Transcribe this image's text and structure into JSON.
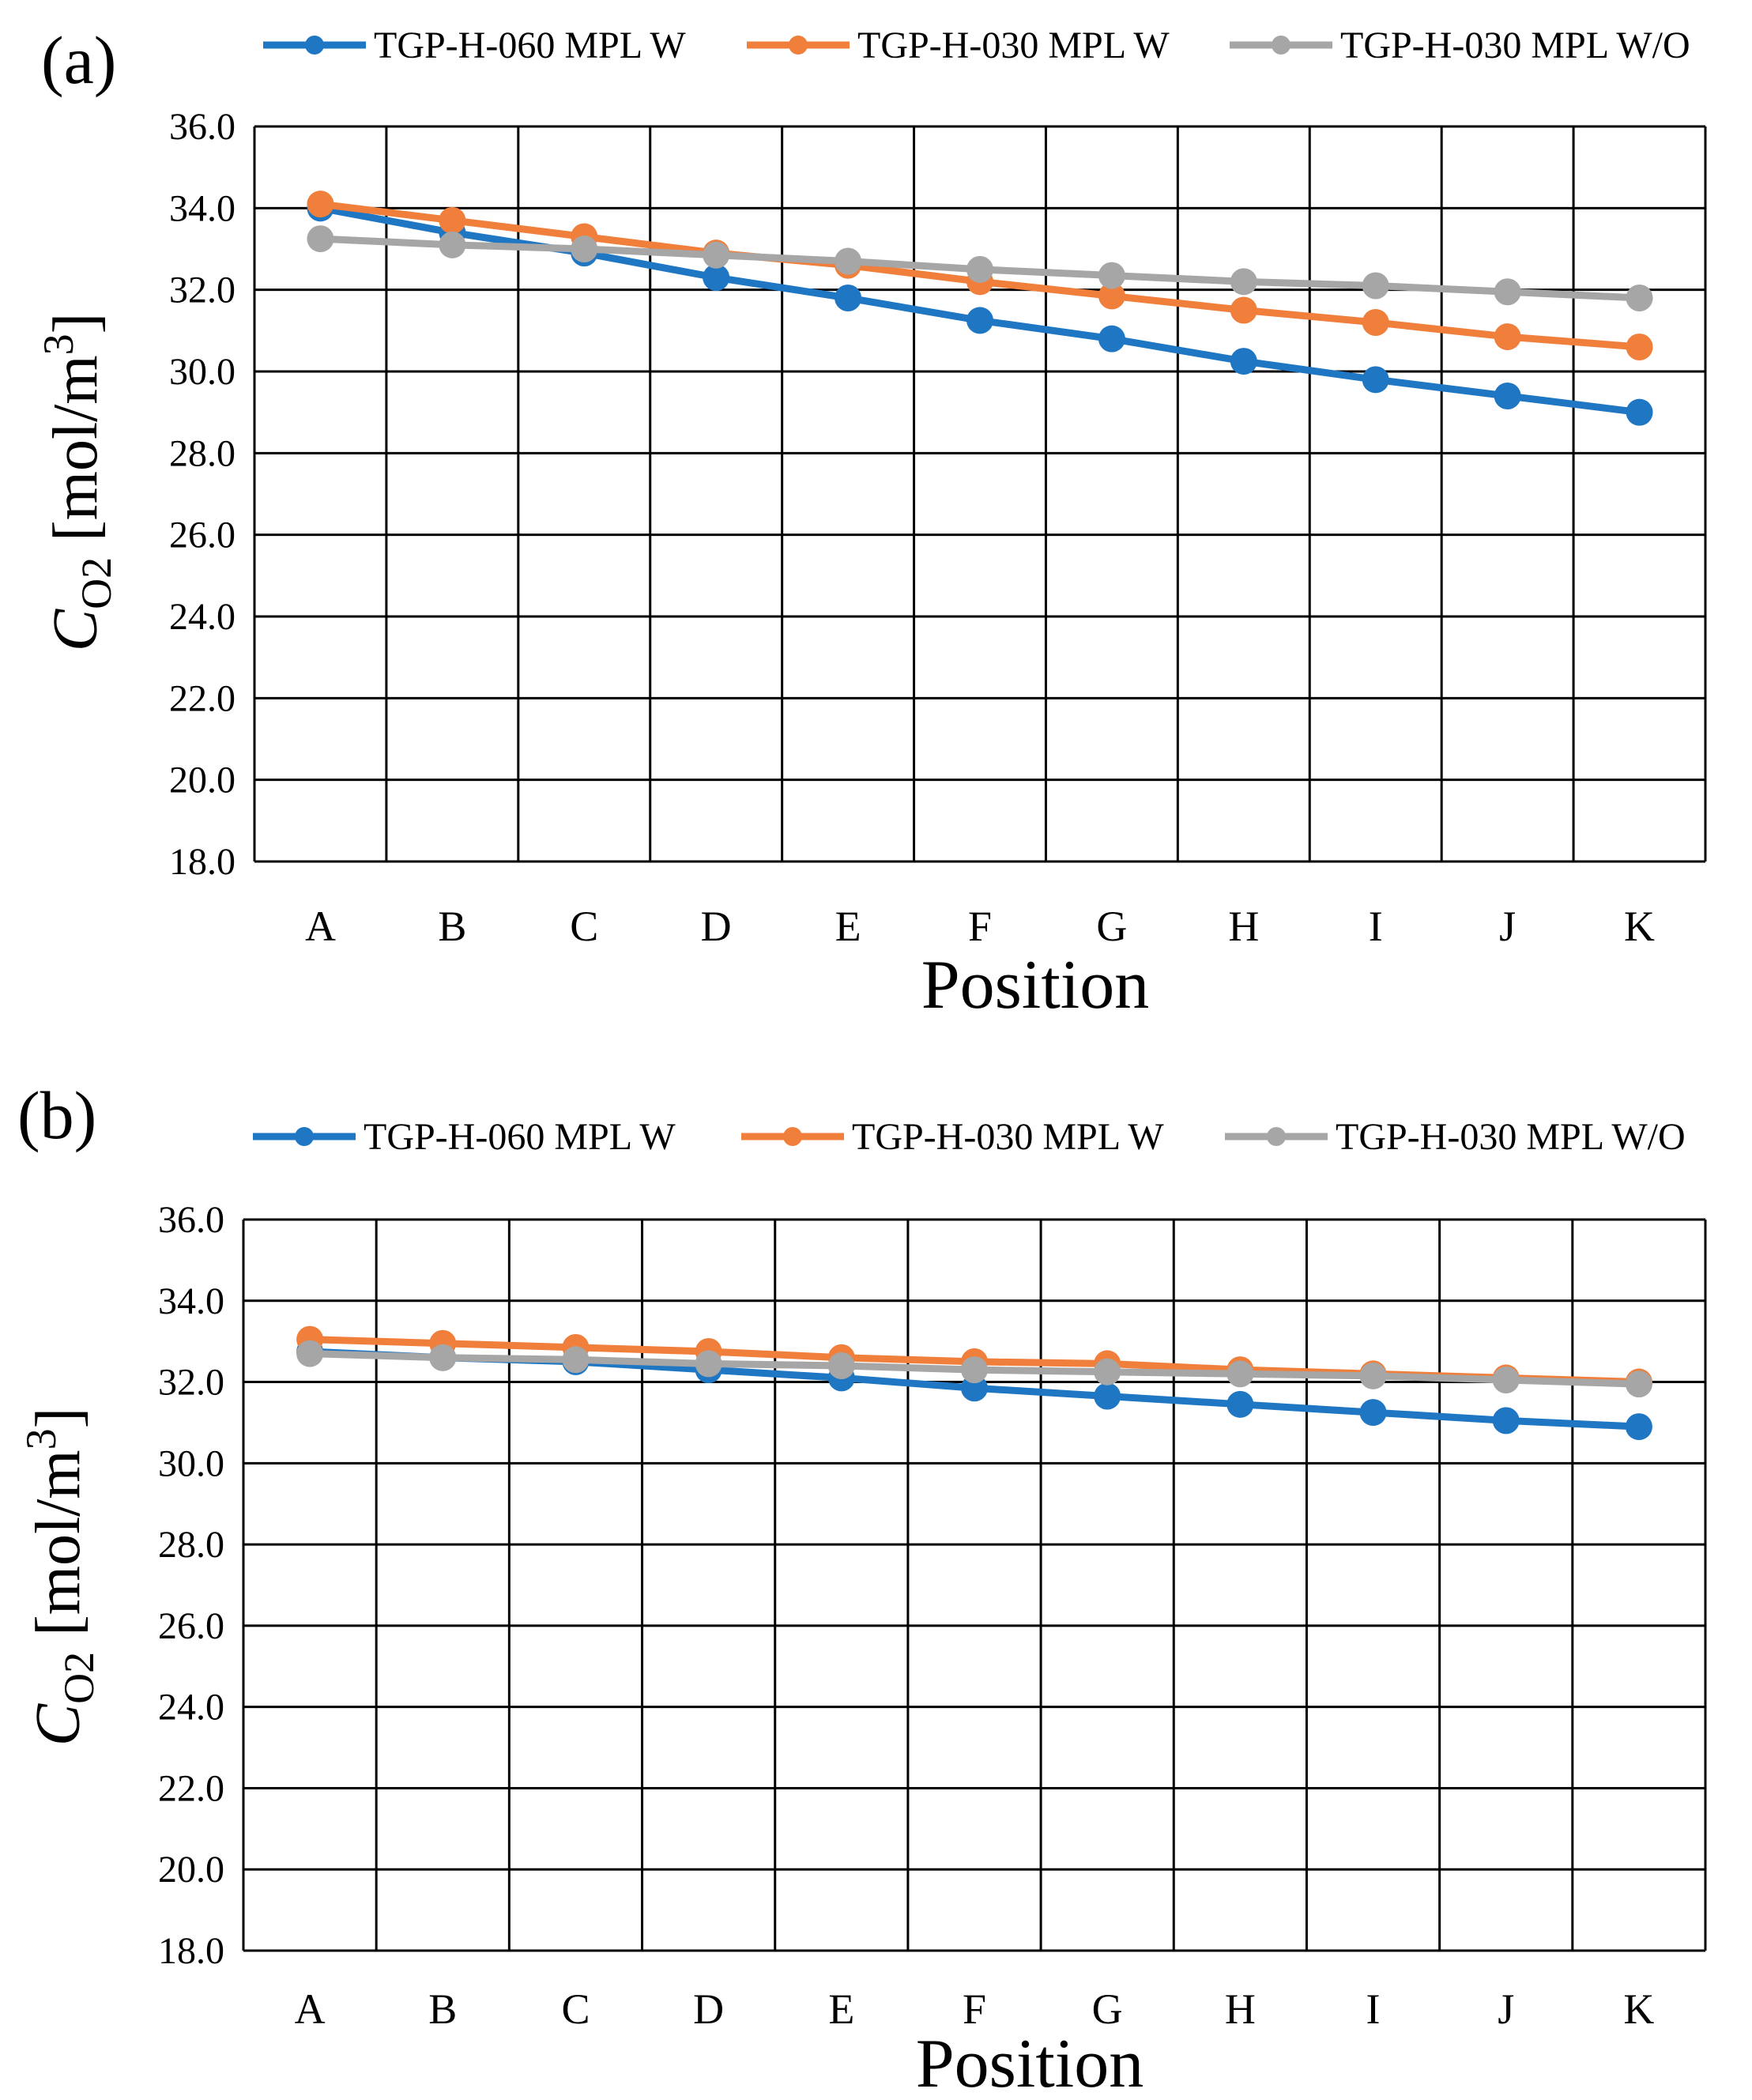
{
  "chart_data": [
    {
      "type": "line",
      "panel_label": "(a)",
      "categories": [
        "A",
        "B",
        "C",
        "D",
        "E",
        "F",
        "G",
        "H",
        "I",
        "J",
        "K"
      ],
      "series": [
        {
          "name": "TGP-H-060 MPL W",
          "color": "#1f77c4",
          "values": [
            34.0,
            33.4,
            32.9,
            32.3,
            31.8,
            31.25,
            30.8,
            30.25,
            29.8,
            29.4,
            29.0
          ]
        },
        {
          "name": "TGP-H-030 MPL W",
          "color": "#f07f3c",
          "values": [
            34.1,
            33.7,
            33.3,
            32.9,
            32.6,
            32.2,
            31.85,
            31.5,
            31.2,
            30.85,
            30.6
          ]
        },
        {
          "name": "TGP-H-030 MPL W/O",
          "color": "#a6a6a6",
          "values": [
            33.25,
            33.1,
            33.0,
            32.85,
            32.7,
            32.5,
            32.35,
            32.2,
            32.1,
            31.95,
            31.8
          ]
        }
      ],
      "yticks": [
        "36.0",
        "34.0",
        "32.0",
        "30.0",
        "28.0",
        "26.0",
        "24.0",
        "22.0",
        "20.0",
        "18.0"
      ],
      "ylim": [
        18,
        36
      ],
      "xlabel": "Position",
      "ylabel_main": "C",
      "ylabel_sub": "O2",
      "ylabel_unit": "[mol/m",
      "ylabel_sup": "3",
      "ylabel_close": "]",
      "grid": true,
      "legend": "top"
    },
    {
      "type": "line",
      "panel_label": "(b)",
      "categories": [
        "A",
        "B",
        "C",
        "D",
        "E",
        "F",
        "G",
        "H",
        "I",
        "J",
        "K"
      ],
      "series": [
        {
          "name": "TGP-H-060 MPL W",
          "color": "#1f77c4",
          "values": [
            32.75,
            32.6,
            32.5,
            32.3,
            32.1,
            31.85,
            31.65,
            31.45,
            31.25,
            31.05,
            30.9
          ]
        },
        {
          "name": "TGP-H-030 MPL W",
          "color": "#f07f3c",
          "values": [
            33.05,
            32.95,
            32.85,
            32.75,
            32.6,
            32.5,
            32.45,
            32.3,
            32.2,
            32.1,
            32.0
          ]
        },
        {
          "name": "TGP-H-030 MPL W/O",
          "color": "#a6a6a6",
          "values": [
            32.7,
            32.6,
            32.55,
            32.45,
            32.4,
            32.3,
            32.25,
            32.2,
            32.15,
            32.05,
            31.95
          ]
        }
      ],
      "yticks": [
        "36.0",
        "34.0",
        "32.0",
        "30.0",
        "28.0",
        "26.0",
        "24.0",
        "22.0",
        "20.0",
        "18.0"
      ],
      "ylim": [
        18,
        36
      ],
      "xlabel": "Position",
      "ylabel_main": "C",
      "ylabel_sub": "O2",
      "ylabel_unit": "[mol/m",
      "ylabel_sup": "3",
      "ylabel_close": "]",
      "grid": true,
      "legend": "top"
    }
  ]
}
